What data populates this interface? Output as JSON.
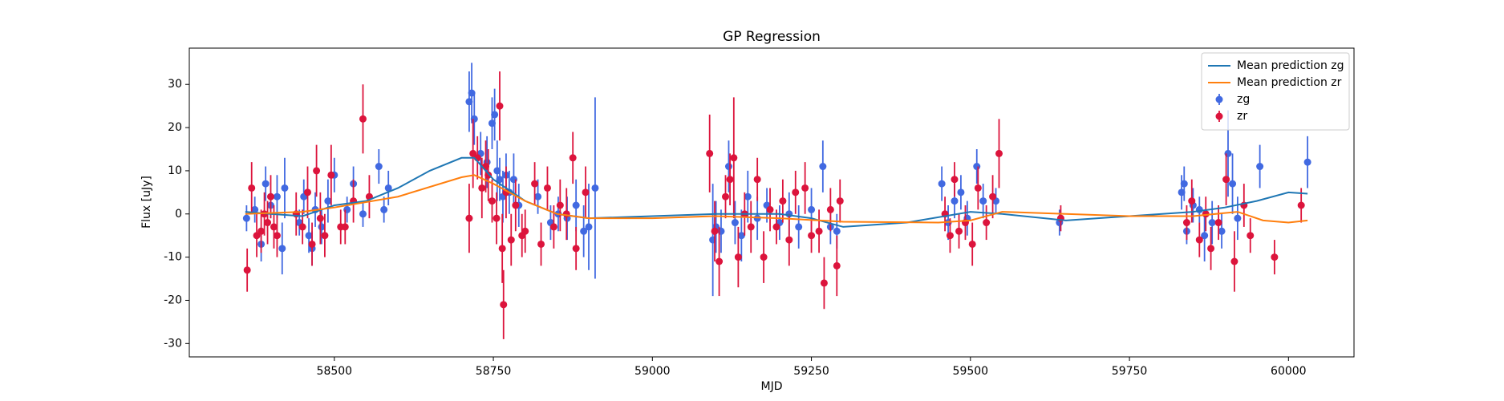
{
  "chart_data": {
    "type": "errorbar",
    "title": "GP Regression",
    "x_label": "MJD",
    "y_label": "Flux [uJy]",
    "xlim": [
      58272,
      60103
    ],
    "ylim": [
      -33.1,
      38.4
    ],
    "xticks": [
      58500,
      58750,
      59000,
      59250,
      59500,
      59750,
      60000
    ],
    "yticks": [
      -30,
      -20,
      -10,
      0,
      10,
      20,
      30
    ],
    "grid": false,
    "legend": "upper right",
    "series": [
      {
        "name": "Mean prediction zg",
        "kind": "line",
        "color": "#1f77b4",
        "x": [
          58360,
          58400,
          58450,
          58500,
          58550,
          58600,
          58650,
          58700,
          58720,
          58750,
          58800,
          58850,
          58900,
          59000,
          59100,
          59200,
          59250,
          59300,
          59400,
          59500,
          59550,
          59650,
          59750,
          59850,
          59900,
          59950,
          60000,
          60030
        ],
        "values": [
          0.5,
          0,
          -0.5,
          2,
          3,
          6,
          10,
          13,
          13,
          8,
          3,
          0,
          -1,
          -0.5,
          0,
          0,
          -1,
          -3,
          -2,
          0.5,
          0,
          -1.5,
          -0.5,
          0.5,
          1.5,
          3,
          5,
          4.7
        ]
      },
      {
        "name": "Mean prediction zr",
        "kind": "line",
        "color": "#ff7f0e",
        "x": [
          58360,
          58450,
          58500,
          58600,
          58700,
          58720,
          58750,
          58800,
          58850,
          58900,
          59000,
          59100,
          59200,
          59300,
          59450,
          59500,
          59550,
          59650,
          59750,
          59850,
          59920,
          59960,
          60000,
          60030
        ],
        "values": [
          0,
          0.5,
          1.5,
          4,
          8.5,
          9,
          7,
          3,
          0,
          -1,
          -1,
          -0.5,
          -1,
          -1.8,
          -2,
          -1.5,
          0.5,
          0,
          -0.5,
          -0.5,
          0.5,
          -1.5,
          -2,
          -1.5
        ]
      },
      {
        "name": "zg",
        "kind": "errorbar",
        "color": "#4169e1",
        "x": [
          58362,
          58375,
          58385,
          58392,
          58400,
          58410,
          58418,
          58422,
          58445,
          58452,
          58460,
          58465,
          58470,
          58480,
          58490,
          58500,
          58520,
          58530,
          58545,
          58570,
          58578,
          58585,
          58712,
          58716,
          58720,
          58730,
          58740,
          58748,
          58752,
          58756,
          58760,
          58765,
          58770,
          58775,
          58782,
          58790,
          58820,
          58840,
          58852,
          58866,
          58880,
          58892,
          58900,
          58910,
          59095,
          59100,
          59108,
          59120,
          59130,
          59140,
          59150,
          59165,
          59180,
          59200,
          59215,
          59230,
          59250,
          59268,
          59280,
          59290,
          59455,
          59465,
          59475,
          59485,
          59495,
          59510,
          59520,
          59540,
          59640,
          59832,
          59836,
          59840,
          59850,
          59860,
          59868,
          59880,
          59895,
          59905,
          59912,
          59920,
          59955,
          60030
        ],
        "values": [
          -1,
          1,
          -7,
          7,
          2,
          4,
          -8,
          6,
          -2,
          4,
          -5,
          -8,
          1,
          -3,
          3,
          9,
          1,
          7,
          0,
          11,
          1,
          6,
          26,
          28,
          22,
          14,
          12,
          21,
          23,
          10,
          8,
          4,
          9,
          5,
          8,
          2,
          4,
          -2,
          0,
          -1,
          2,
          -4,
          -3,
          6,
          -6,
          -3,
          -4,
          11,
          -2,
          -5,
          4,
          -1,
          2,
          -2,
          0,
          -3,
          1,
          11,
          -3,
          -4,
          7,
          -2,
          3,
          5,
          -1,
          11,
          3,
          3,
          -2,
          5,
          7,
          -4,
          2,
          1,
          -5,
          -2,
          -4,
          14,
          7,
          -1,
          11,
          12
        ],
        "errors": [
          3,
          3,
          4,
          4,
          3,
          5,
          6,
          7,
          3,
          4,
          4,
          4,
          4,
          4,
          5,
          4,
          3,
          4,
          3,
          4,
          3,
          4,
          7,
          7,
          6,
          5,
          6,
          6,
          6,
          7,
          5,
          6,
          5,
          5,
          6,
          5,
          4,
          4,
          4,
          5,
          6,
          6,
          10,
          21,
          13,
          6,
          5,
          6,
          5,
          6,
          6,
          5,
          4,
          4,
          5,
          5,
          5,
          6,
          4,
          4,
          4,
          4,
          4,
          4,
          4,
          4,
          4,
          3,
          3,
          4,
          4,
          3,
          4,
          3,
          6,
          5,
          4,
          10,
          7,
          5,
          5,
          6
        ]
      },
      {
        "name": "zr",
        "kind": "errorbar",
        "color": "#dc143c",
        "x": [
          58363,
          58370,
          58378,
          58385,
          58390,
          58395,
          58400,
          58405,
          58410,
          58440,
          58450,
          58458,
          58465,
          58472,
          58478,
          58485,
          58495,
          58510,
          58517,
          58530,
          58545,
          58555,
          58712,
          58718,
          58725,
          58732,
          58738,
          58742,
          58748,
          58755,
          58760,
          58764,
          58766,
          58770,
          58778,
          58785,
          58795,
          58800,
          58815,
          58825,
          58835,
          58845,
          58855,
          58865,
          58875,
          58880,
          58895,
          59090,
          59098,
          59105,
          59115,
          59122,
          59128,
          59135,
          59145,
          59155,
          59165,
          59175,
          59185,
          59195,
          59205,
          59215,
          59225,
          59240,
          59250,
          59262,
          59270,
          59280,
          59290,
          59295,
          59460,
          59468,
          59475,
          59482,
          59492,
          59503,
          59512,
          59525,
          59535,
          59545,
          59642,
          59840,
          59848,
          59860,
          59870,
          59878,
          59890,
          59902,
          59915,
          59930,
          59940,
          59978,
          60020
        ],
        "values": [
          -13,
          6,
          -5,
          -4,
          0,
          -2,
          4,
          -3,
          -5,
          0,
          -3,
          5,
          -7,
          10,
          -1,
          -5,
          9,
          -3,
          -3,
          3,
          22,
          4,
          -1,
          14,
          13,
          6,
          11,
          9,
          3,
          -1,
          25,
          -8,
          -21,
          5,
          -6,
          2,
          -5,
          -4,
          7,
          -7,
          6,
          -3,
          2,
          0,
          13,
          -8,
          5,
          14,
          -4,
          -11,
          4,
          8,
          13,
          -10,
          0,
          -3,
          8,
          -10,
          1,
          -3,
          3,
          -6,
          5,
          6,
          -5,
          -4,
          -16,
          1,
          -12,
          3,
          0,
          -5,
          8,
          -4,
          -2,
          -7,
          6,
          -2,
          4,
          14,
          -1,
          -2,
          3,
          -6,
          0,
          -8,
          -2,
          8,
          -11,
          2,
          -5,
          -10,
          2
        ],
        "errors": [
          5,
          6,
          5,
          5,
          5,
          5,
          5,
          5,
          5,
          5,
          4,
          6,
          5,
          6,
          6,
          5,
          7,
          4,
          4,
          5,
          8,
          5,
          8,
          8,
          5,
          7,
          6,
          6,
          5,
          6,
          8,
          8,
          8,
          6,
          6,
          6,
          5,
          5,
          5,
          5,
          5,
          5,
          6,
          6,
          6,
          5,
          6,
          9,
          7,
          8,
          5,
          6,
          14,
          7,
          5,
          6,
          5,
          6,
          5,
          4,
          5,
          6,
          5,
          6,
          4,
          5,
          6,
          5,
          7,
          5,
          4,
          4,
          4,
          4,
          4,
          5,
          5,
          4,
          5,
          8,
          3,
          4,
          5,
          4,
          4,
          5,
          4,
          6,
          7,
          5,
          4,
          4,
          4
        ]
      }
    ]
  }
}
